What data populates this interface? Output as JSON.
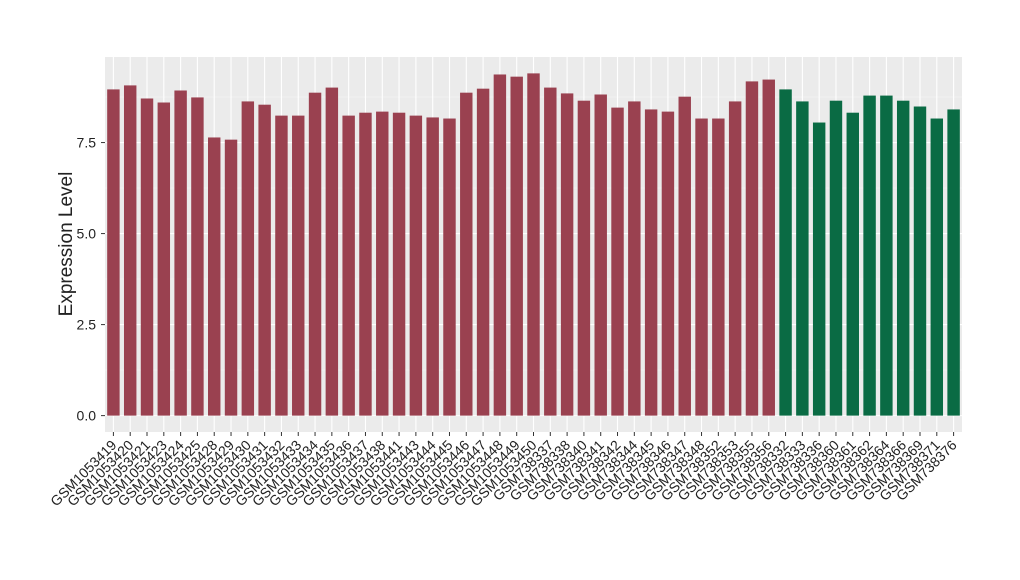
{
  "chart_data": {
    "type": "bar",
    "y_label": "Expression Level",
    "categories": [
      "GSM1053419",
      "GSM1053420",
      "GSM1053421",
      "GSM1053423",
      "GSM1053424",
      "GSM1053425",
      "GSM1053428",
      "GSM1053429",
      "GSM1053430",
      "GSM1053431",
      "GSM1053432",
      "GSM1053433",
      "GSM1053434",
      "GSM1053435",
      "GSM1053436",
      "GSM1053437",
      "GSM1053438",
      "GSM1053441",
      "GSM1053443",
      "GSM1053444",
      "GSM1053445",
      "GSM1053446",
      "GSM1053447",
      "GSM1053448",
      "GSM1053449",
      "GSM1053450",
      "GSM738337",
      "GSM738338",
      "GSM738340",
      "GSM738341",
      "GSM738342",
      "GSM738344",
      "GSM738345",
      "GSM738346",
      "GSM738347",
      "GSM738348",
      "GSM738352",
      "GSM738353",
      "GSM738355",
      "GSM738356",
      "GSM738332",
      "GSM738333",
      "GSM738336",
      "GSM738360",
      "GSM738361",
      "GSM738362",
      "GSM738364",
      "GSM738366",
      "GSM738369",
      "GSM738371",
      "GSM738376"
    ],
    "values": [
      8.96,
      9.07,
      8.71,
      8.6,
      8.93,
      8.74,
      7.64,
      7.58,
      8.63,
      8.54,
      8.24,
      8.24,
      8.87,
      9.01,
      8.24,
      8.32,
      8.35,
      8.32,
      8.24,
      8.19,
      8.16,
      8.87,
      8.98,
      9.37,
      9.31,
      9.4,
      9.01,
      8.85,
      8.65,
      8.82,
      8.46,
      8.63,
      8.41,
      8.35,
      8.76,
      8.16,
      8.16,
      8.63,
      9.18,
      9.23,
      8.96,
      8.63,
      8.05,
      8.65,
      8.32,
      8.79,
      8.79,
      8.65,
      8.49,
      8.16,
      8.41
    ],
    "colors": [
      "#9a4150",
      "#9a4150",
      "#9a4150",
      "#9a4150",
      "#9a4150",
      "#9a4150",
      "#9a4150",
      "#9a4150",
      "#9a4150",
      "#9a4150",
      "#9a4150",
      "#9a4150",
      "#9a4150",
      "#9a4150",
      "#9a4150",
      "#9a4150",
      "#9a4150",
      "#9a4150",
      "#9a4150",
      "#9a4150",
      "#9a4150",
      "#9a4150",
      "#9a4150",
      "#9a4150",
      "#9a4150",
      "#9a4150",
      "#9a4150",
      "#9a4150",
      "#9a4150",
      "#9a4150",
      "#9a4150",
      "#9a4150",
      "#9a4150",
      "#9a4150",
      "#9a4150",
      "#9a4150",
      "#9a4150",
      "#9a4150",
      "#9a4150",
      "#9a4150",
      "#0a6b44",
      "#0a6b44",
      "#0a6b44",
      "#0a6b44",
      "#0a6b44",
      "#0a6b44",
      "#0a6b44",
      "#0a6b44",
      "#0a6b44",
      "#0a6b44",
      "#0a6b44"
    ],
    "ylim": [
      -0.45,
      9.85
    ],
    "yticks": [
      {
        "value": 0,
        "label": "0.0"
      },
      2.5,
      {
        "value": 5,
        "label": "5.0"
      },
      7.5
    ],
    "grid": true
  }
}
